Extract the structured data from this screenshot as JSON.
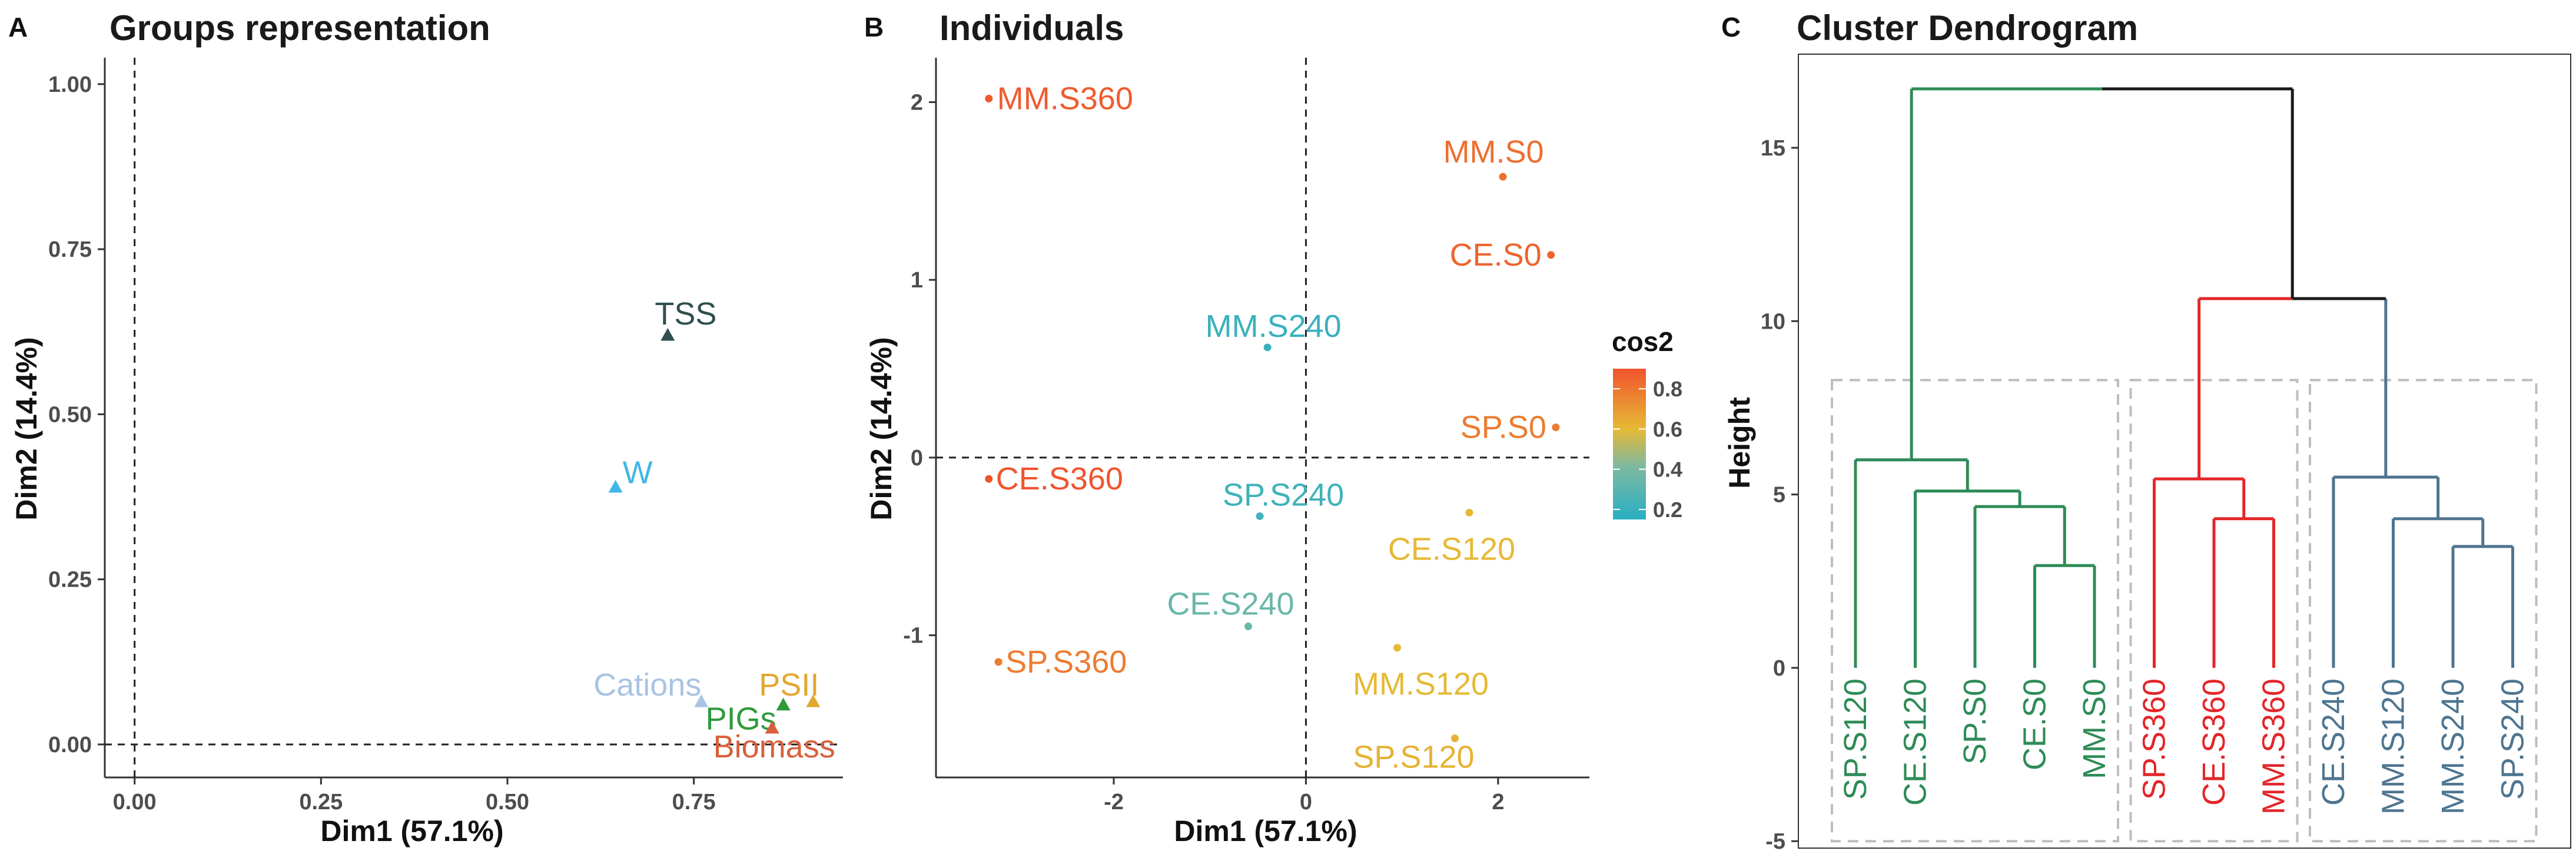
{
  "panels": {
    "a": {
      "letter": "A",
      "title": "Groups representation"
    },
    "b": {
      "letter": "B",
      "title": "Individuals"
    },
    "c": {
      "letter": "C",
      "title": "Cluster Dendrogram"
    }
  },
  "colors": {
    "TSS": "#2F4F4F",
    "W": "#3FB7E8",
    "Cations": "#A9C4E2",
    "PSII": "#E3A72F",
    "PIGs": "#2E9A3A",
    "Biomass": "#D95F3B",
    "green": "#2E8B57",
    "red": "#E3262A",
    "steel": "#4E7590",
    "black": "#1a1a1a"
  },
  "chart_data": [
    {
      "type": "scatter",
      "panel": "A",
      "title": "Groups representation",
      "xlabel": "Dim1 (57.1%)",
      "ylabel": "Dim2 (14.4%)",
      "xlim": [
        -0.04,
        0.95
      ],
      "ylim": [
        -0.05,
        1.04
      ],
      "xticks": [
        0.0,
        0.25,
        0.5,
        0.75
      ],
      "xtick_labels": [
        "0.00",
        "0.25",
        "0.50",
        "0.75"
      ],
      "yticks": [
        0.0,
        0.25,
        0.5,
        0.75,
        1.0
      ],
      "ytick_labels": [
        "0.00",
        "0.25",
        "0.50",
        "0.75",
        "1.00"
      ],
      "grid": false,
      "marker": "triangle",
      "points": [
        {
          "label": "TSS",
          "x": 0.715,
          "y": 0.62
        },
        {
          "label": "W",
          "x": 0.645,
          "y": 0.39
        },
        {
          "label": "Cations",
          "x": 0.76,
          "y": 0.065
        },
        {
          "label": "PSII",
          "x": 0.91,
          "y": 0.065
        },
        {
          "label": "PIGs",
          "x": 0.87,
          "y": 0.06
        },
        {
          "label": "Biomass",
          "x": 0.855,
          "y": 0.025
        }
      ]
    },
    {
      "type": "scatter",
      "panel": "B",
      "title": "Individuals",
      "xlabel": "Dim1 (57.1%)",
      "ylabel": "Dim2 (14.4%)",
      "xlim": [
        -3.85,
        2.95
      ],
      "ylim": [
        -1.8,
        2.25
      ],
      "xticks": [
        -2,
        0,
        2
      ],
      "xtick_labels": [
        "-2",
        "0",
        "2"
      ],
      "yticks": [
        -1,
        0,
        1,
        2
      ],
      "ytick_labels": [
        "-1",
        "0",
        "1",
        "2"
      ],
      "grid": false,
      "legend": {
        "title": "cos2",
        "position": "right",
        "ticks": [
          "0.8",
          "0.6",
          "0.4",
          "0.2"
        ],
        "range": [
          0.15,
          0.9
        ]
      },
      "points": [
        {
          "label": "MM.S360",
          "x": -3.3,
          "y": 2.02,
          "cos2": 0.88
        },
        {
          "label": "MM.S0",
          "x": 2.05,
          "y": 1.58,
          "cos2": 0.82
        },
        {
          "label": "CE.S0",
          "x": 2.55,
          "y": 1.14,
          "cos2": 0.85
        },
        {
          "label": "MM.S240",
          "x": -0.4,
          "y": 0.62,
          "cos2": 0.2
        },
        {
          "label": "SP.S0",
          "x": 2.6,
          "y": 0.17,
          "cos2": 0.78
        },
        {
          "label": "CE.S360",
          "x": -3.3,
          "y": -0.12,
          "cos2": 0.9
        },
        {
          "label": "SP.S240",
          "x": -0.48,
          "y": -0.33,
          "cos2": 0.22
        },
        {
          "label": "CE.S120",
          "x": 1.7,
          "y": -0.31,
          "cos2": 0.6
        },
        {
          "label": "CE.S240",
          "x": -0.6,
          "y": -0.95,
          "cos2": 0.35
        },
        {
          "label": "SP.S360",
          "x": -3.2,
          "y": -1.15,
          "cos2": 0.78
        },
        {
          "label": "MM.S120",
          "x": 0.95,
          "y": -1.07,
          "cos2": 0.6
        },
        {
          "label": "SP.S120",
          "x": 1.55,
          "y": -1.58,
          "cos2": 0.62
        }
      ]
    },
    {
      "type": "dendrogram",
      "panel": "C",
      "title": "Cluster Dendrogram",
      "ylabel": "Height",
      "ylim": [
        -5.2,
        17.7
      ],
      "yticks": [
        -5,
        0,
        5,
        10,
        15
      ],
      "ytick_labels": [
        "-5",
        "0",
        "5",
        "10",
        "15"
      ],
      "leaves": [
        {
          "label": "SP.S120",
          "cluster": "green"
        },
        {
          "label": "CE.S120",
          "cluster": "green"
        },
        {
          "label": "SP.S0",
          "cluster": "green"
        },
        {
          "label": "CE.S0",
          "cluster": "green"
        },
        {
          "label": "MM.S0",
          "cluster": "green"
        },
        {
          "label": "SP.S360",
          "cluster": "red"
        },
        {
          "label": "CE.S360",
          "cluster": "red"
        },
        {
          "label": "MM.S360",
          "cluster": "red"
        },
        {
          "label": "CE.S240",
          "cluster": "steel"
        },
        {
          "label": "MM.S120",
          "cluster": "steel"
        },
        {
          "label": "MM.S240",
          "cluster": "steel"
        },
        {
          "label": "SP.S240",
          "cluster": "steel"
        }
      ],
      "leaf_height": 0,
      "merges": [
        {
          "a": 3,
          "b": 4,
          "height": 2.95,
          "color": "green"
        },
        {
          "a": 2,
          "b": -1,
          "height": 4.65,
          "color": "green"
        },
        {
          "a": 1,
          "b": -2,
          "height": 5.1,
          "color": "green"
        },
        {
          "a": 0,
          "b": -3,
          "height": 6.0,
          "color": "green"
        },
        {
          "a": 6,
          "b": 7,
          "height": 4.3,
          "color": "red"
        },
        {
          "a": 5,
          "b": -5,
          "height": 5.45,
          "color": "red"
        },
        {
          "a": 10,
          "b": 11,
          "height": 3.5,
          "color": "steel"
        },
        {
          "a": 9,
          "b": -7,
          "height": 4.3,
          "color": "steel"
        },
        {
          "a": 8,
          "b": -8,
          "height": 5.5,
          "color": "steel"
        },
        {
          "a": -6,
          "b": -9,
          "height": 10.65,
          "color": "mixed"
        },
        {
          "a": -4,
          "b": -10,
          "height": 16.7,
          "color": "mixed"
        }
      ],
      "cluster_boxes": [
        {
          "leaves": [
            0,
            4
          ],
          "top": 8.3,
          "bottom": -5.0
        },
        {
          "leaves": [
            5,
            7
          ],
          "top": 8.3,
          "bottom": -5.0
        },
        {
          "leaves": [
            8,
            11
          ],
          "top": 8.3,
          "bottom": -5.0
        }
      ]
    }
  ]
}
